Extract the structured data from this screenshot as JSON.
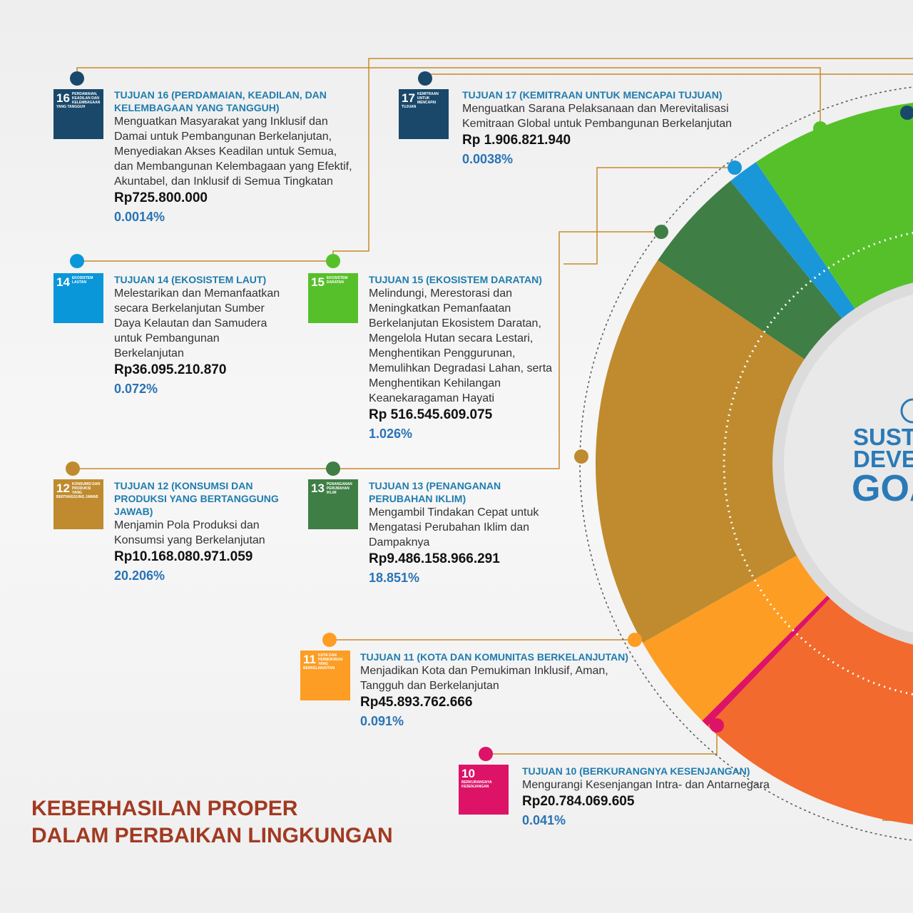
{
  "goals": [
    {
      "icon_number": "16",
      "icon_label": "PERDAMAIAN, KEADILAN DAN KELEMBAGAAN YANG TANGGUH",
      "title": "TUJUAN 16 (PERDAMAIAN, KEADILAN, DAN KELEMBAGAAN YANG TANGGUH)",
      "description": "Menguatkan Masyarakat yang Inklusif dan Damai untuk Pembangunan Berkelanjutan, Menyediakan Akses Keadilan untuk Semua, dan Membangunan Kelembagaan yang Efektif, Akuntabel, dan Inklusif di Semua Tingkatan",
      "amount": "Rp725.800.000",
      "percent": "0.0014%",
      "color": "#19486a"
    },
    {
      "icon_number": "17",
      "icon_label": "KEMITRAAN UNTUK MENCAPAI TUJUAN",
      "title": "TUJUAN 17 (KEMITRAAN UNTUK MENCAPAI TUJUAN)",
      "description": "Menguatkan Sarana Pelaksanaan dan Merevitalisasi Kemitraan Global untuk Pembangunan Berkelanjutan",
      "amount": "Rp 1.906.821.940",
      "percent": "0.0038%",
      "color": "#19486a"
    },
    {
      "icon_number": "14",
      "icon_label": "EKOSISTEM LAUTAN",
      "title": "TUJUAN 14 (EKOSISTEM LAUT)",
      "description": "Melestarikan dan Memanfaatkan secara Berkelanjutan Sumber Daya Kelautan dan Samudera untuk Pembangunan Berkelanjutan",
      "amount": "Rp36.095.210.870",
      "percent": "0.072%",
      "color": "#0a97d9"
    },
    {
      "icon_number": "15",
      "icon_label": "EKOSISTEM DARATAN",
      "title": "TUJUAN 15 (EKOSISTEM DARATAN)",
      "description": "Melindungi, Merestorasi dan Meningkatkan Pemanfaatan Berkelanjutan Ekosistem Daratan, Mengelola Hutan secara Lestari, Menghentikan Penggurunan, Memulihkan Degradasi Lahan, serta Menghentikan Kehilangan Keanekaragaman Hayati",
      "amount": "Rp 516.545.609.075",
      "percent": "1.026%",
      "color": "#56c02b"
    },
    {
      "icon_number": "12",
      "icon_label": "KONSUMSI DAN PRODUKSI YANG BERTANGGUNG JAWAB",
      "title": "TUJUAN 12 (KONSUMSI DAN PRODUKSI YANG BERTANGGUNG JAWAB)",
      "description": "Menjamin Pola Produksi dan Konsumsi yang Berkelanjutan",
      "amount": "Rp10.168.080.971.059",
      "percent": "20.206%",
      "color": "#bf8b2e"
    },
    {
      "icon_number": "13",
      "icon_label": "PENANGANAN PERUBAHAN IKLIM",
      "title": "TUJUAN 13 (PENANGANAN PERUBAHAN IKLIM)",
      "description": "Mengambil Tindakan Cepat untuk Mengatasi Perubahan Iklim dan Dampaknya",
      "amount": "Rp9.486.158.966.291",
      "percent": "18.851%",
      "color": "#3f7e44"
    },
    {
      "icon_number": "11",
      "icon_label": "KOTA DAN PERMUKIMAN YANG BERKELANJUTAN",
      "title": "TUJUAN 11 (KOTA DAN KOMUNITAS BERKELANJUTAN)",
      "description": "Menjadikan Kota dan Pemukiman Inklusif, Aman, Tangguh dan Berkelanjutan",
      "amount": "Rp45.893.762.666",
      "percent": "0.091%",
      "color": "#fd9d24"
    },
    {
      "icon_number": "10",
      "icon_label": "BERKURANGNYA KESENJANGAN",
      "title": "TUJUAN 10 (BERKURANGNYA KESENJANGAN)",
      "description": "Mengurangi Kesenjangan Intra- dan Antarnegara",
      "amount": "Rp20.784.069.605",
      "percent": "0.041%",
      "color": "#dd1367"
    }
  ],
  "logo": {
    "line1": "SUSTAINABLE",
    "line2": "DEVELOPMENT",
    "line3": "GOALS"
  },
  "footer": {
    "line1": "KEBERHASILAN PROPER",
    "line2": "DALAM PERBAIKAN LINGKUNGAN"
  }
}
